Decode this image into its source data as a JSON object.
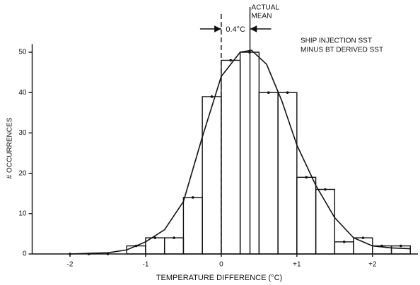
{
  "chart_data": {
    "type": "histogram",
    "xlabel": "TEMPERATURE DIFFERENCE (°C)",
    "ylabel": "# OCCURRENCES",
    "annotations": {
      "mean_label_1": "ACTUAL",
      "mean_label_2": "MEAN",
      "offset_label": "0.4°C",
      "note_1": "SHIP INJECTION SST",
      "note_2": "MINUS BT DERIVED SST"
    },
    "bins": [
      -1.25,
      -1.0,
      -0.75,
      -0.5,
      -0.25,
      0,
      0.25,
      0.5,
      0.75,
      1.0,
      1.25,
      1.5,
      1.75,
      2.0,
      2.25,
      2.5
    ],
    "counts": [
      2,
      4,
      4,
      14,
      39,
      48,
      50,
      40,
      40,
      19,
      16,
      3,
      4,
      2,
      2
    ],
    "zero_points": {
      "x": [
        -2,
        -1.75,
        -1.5
      ],
      "y": [
        0,
        0,
        0
      ]
    },
    "curve": {
      "x": [
        -2,
        -1.5,
        -1.25,
        -1,
        -0.75,
        -0.5,
        -0.25,
        0,
        0.25,
        0.4,
        0.6,
        0.8,
        1.0,
        1.25,
        1.5,
        1.75,
        2,
        2.25,
        2.5
      ],
      "y": [
        0,
        0.3,
        1,
        3,
        6,
        13,
        29,
        44,
        50,
        50.5,
        47,
        38,
        27,
        17,
        9,
        4,
        2,
        1.5,
        1.3
      ]
    },
    "mean_line": 0.38,
    "reference_line": 0,
    "color": "#111111",
    "xlim": [
      -2.5,
      2.6
    ],
    "xticks": [
      {
        "value": -2,
        "label": "-2"
      },
      {
        "value": -1,
        "label": "-1"
      },
      0,
      {
        "value": 1,
        "label": "+1"
      },
      {
        "value": 2,
        "label": "+2"
      }
    ],
    "ylim": [
      0,
      52
    ],
    "yticks": [
      0,
      10,
      20,
      30,
      40,
      50
    ]
  }
}
